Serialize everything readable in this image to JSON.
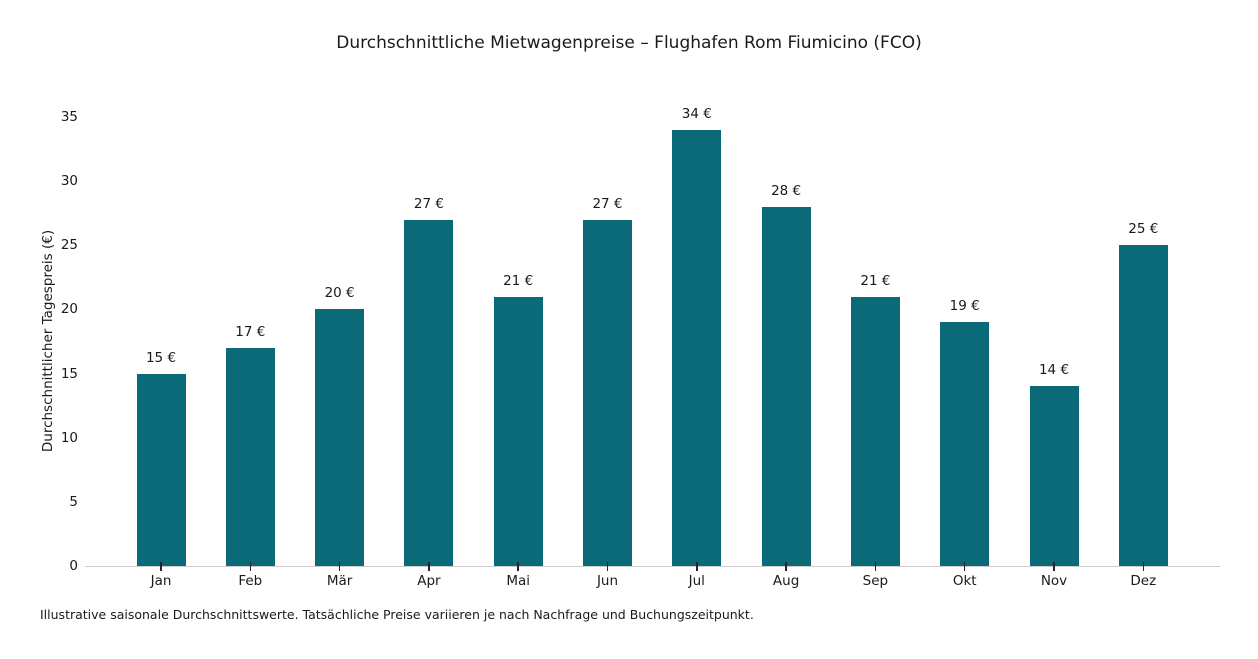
{
  "chart_data": {
    "type": "bar",
    "title": "Durchschnittliche Mietwagenpreise – Flughafen Rom Fiumicino (FCO)",
    "categories": [
      "Jan",
      "Feb",
      "Mär",
      "Apr",
      "Mai",
      "Jun",
      "Jul",
      "Aug",
      "Sep",
      "Okt",
      "Nov",
      "Dez"
    ],
    "values": [
      15,
      17,
      20,
      27,
      21,
      27,
      34,
      28,
      21,
      19,
      14,
      25
    ],
    "value_labels": [
      "15 €",
      "17 €",
      "20 €",
      "27 €",
      "21 €",
      "27 €",
      "34 €",
      "28 €",
      "21 €",
      "19 €",
      "14 €",
      "25 €"
    ],
    "xlabel": "",
    "ylabel": "Durchschnittlicher Tagespreis (€)",
    "yticks": [
      0,
      5,
      10,
      15,
      20,
      25,
      30,
      35
    ],
    "ylim": [
      0,
      35
    ],
    "grid": false,
    "legend": "none",
    "bar_color": "#0b6a78"
  },
  "footnote": "Illustrative saisonale Durchschnittswerte. Tatsächliche Preise variieren je nach Nachfrage und Buchungszeitpunkt."
}
